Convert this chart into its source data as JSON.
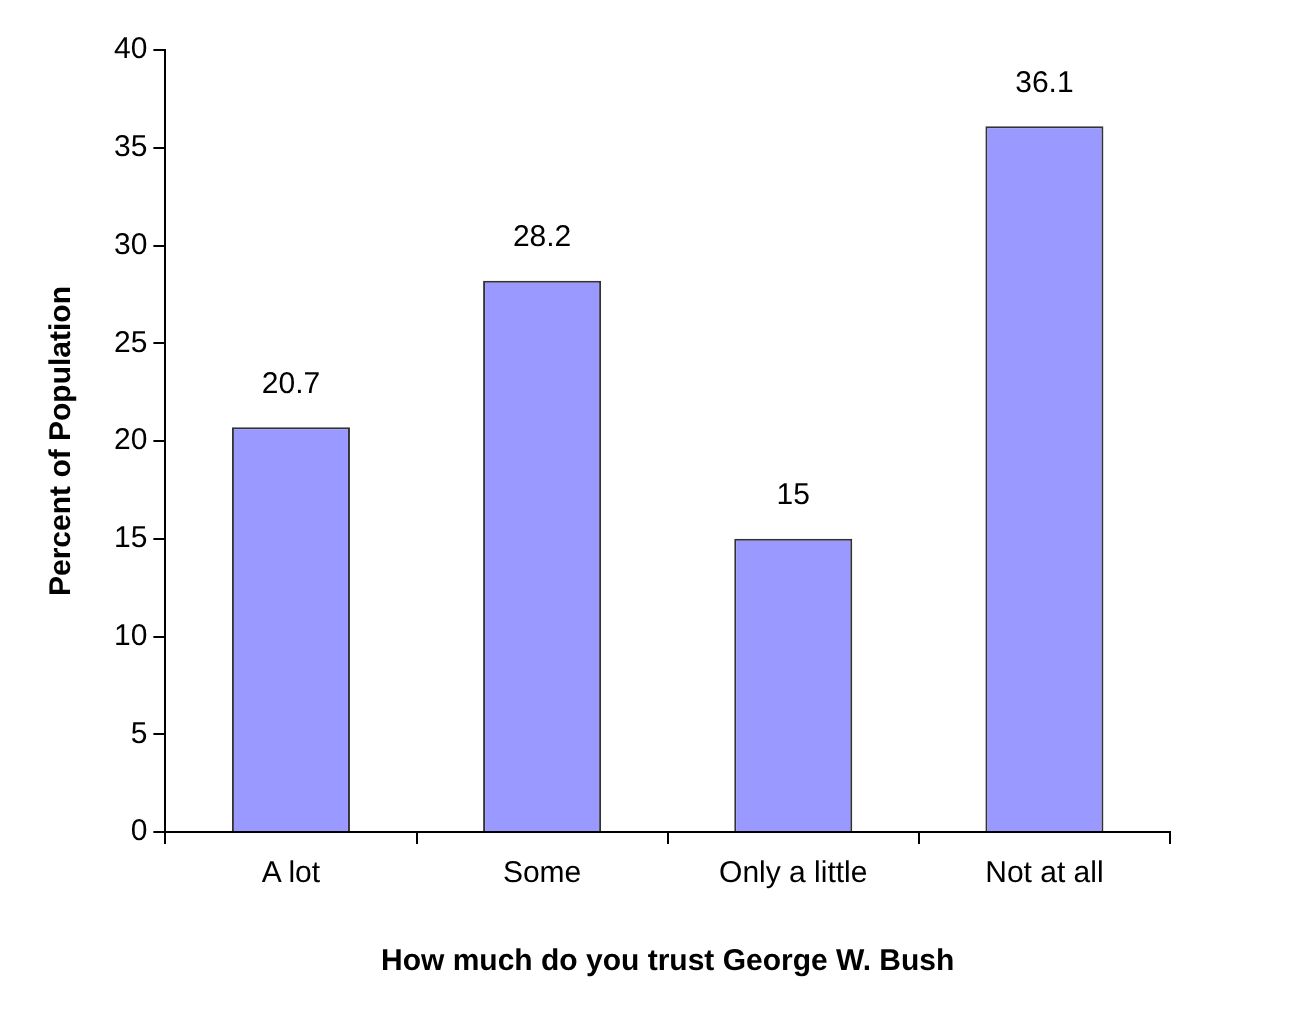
{
  "chart_data": {
    "type": "bar",
    "xlabel": "How much do you trust George W. Bush",
    "ylabel": "Percent of Population",
    "categories": [
      "A lot",
      "Some",
      "Only a little",
      "Not at all"
    ],
    "values": [
      20.7,
      28.2,
      15,
      36.1
    ],
    "color": "#9999ff",
    "ylim": [
      0,
      40
    ],
    "yticks": [
      0,
      5,
      10,
      15,
      20,
      25,
      30,
      35,
      40
    ],
    "grid": false,
    "data_labels": true,
    "legend": false
  }
}
